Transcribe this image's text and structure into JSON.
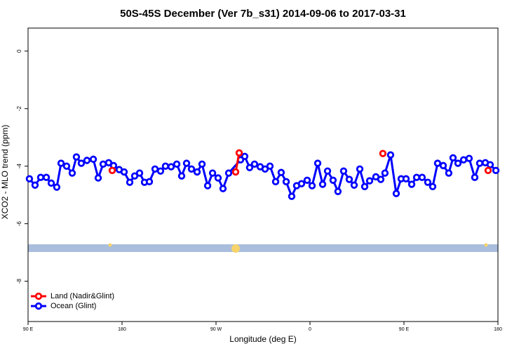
{
  "chart_data": {
    "type": "line",
    "title": "50S-45S December (Ver 7b_s31)   2014-09-06 to 2017-03-31",
    "xlabel": "Longitude (deg E)",
    "ylabel": "XCO2 - MLO trend (ppm)",
    "xlim": [
      90,
      540
    ],
    "ylim": [
      -9.4,
      0.8
    ],
    "xticks": [
      {
        "value": 90,
        "label": "90 E"
      },
      {
        "value": 180,
        "label": "180"
      },
      {
        "value": 270,
        "label": "90 W"
      },
      {
        "value": 360,
        "label": "0"
      },
      {
        "value": 450,
        "label": "90 E"
      },
      {
        "value": 540,
        "label": "180"
      }
    ],
    "yticks": [
      0,
      -2,
      -4,
      -6,
      -8
    ],
    "legend": "bottom-left",
    "series": [
      {
        "name": "Land (Nadir&Glint)",
        "color": "#ff0000",
        "x": [
          170.6,
          288.8,
          292.2,
          429.8,
          530.6
        ],
        "values": [
          -4.15,
          -4.2,
          -3.54,
          -3.56,
          -4.15
        ]
      },
      {
        "name": "Ocean (Glint)",
        "color": "#0000ff",
        "x": [
          91.3,
          96.7,
          102.1,
          107.5,
          112.2,
          117.5,
          121.6,
          126.9,
          132.3,
          136.3,
          141.0,
          146.4,
          152.5,
          157.2,
          161.9,
          167.2,
          171.9,
          177.3,
          182.0,
          187.4,
          192.1,
          196.8,
          201.5,
          206.2,
          211.6,
          216.9,
          221.6,
          227.0,
          232.4,
          237.1,
          241.8,
          246.5,
          251.9,
          256.6,
          262.0,
          266.7,
          272.0,
          276.7,
          282.1,
          293.5,
          297.5,
          302.2,
          306.9,
          312.3,
          317.0,
          321.7,
          327.1,
          332.4,
          337.2,
          342.5,
          347.2,
          351.9,
          357.3,
          362.0,
          367.4,
          372.1,
          376.8,
          382.1,
          386.8,
          392.2,
          397.6,
          402.3,
          407.7,
          412.4,
          417.1,
          423.1,
          427.8,
          431.8,
          437.2,
          442.6,
          447.3,
          452.0,
          457.4,
          462.1,
          467.4,
          472.8,
          477.5,
          482.2,
          487.6,
          492.9,
          497.0,
          501.7,
          507.1,
          512.4,
          517.8,
          522.5,
          527.9,
          532.6,
          538.0
        ],
        "values": [
          -4.44,
          -4.66,
          -4.39,
          -4.39,
          -4.59,
          -4.73,
          -3.9,
          -4.0,
          -4.24,
          -3.68,
          -3.9,
          -3.8,
          -3.76,
          -4.41,
          -3.93,
          -3.88,
          -3.98,
          -4.12,
          -4.2,
          -4.56,
          -4.34,
          -4.24,
          -4.56,
          -4.54,
          -4.1,
          -4.17,
          -4.0,
          -4.02,
          -3.93,
          -4.34,
          -3.9,
          -4.1,
          -4.2,
          -3.93,
          -4.68,
          -4.24,
          -4.41,
          -4.78,
          -4.24,
          -3.78,
          -3.66,
          -4.05,
          -3.93,
          -4.02,
          -4.1,
          -4.0,
          -4.54,
          -4.22,
          -4.54,
          -5.05,
          -4.68,
          -4.61,
          -4.49,
          -4.68,
          -3.9,
          -4.63,
          -4.17,
          -4.49,
          -4.88,
          -4.17,
          -4.46,
          -4.66,
          -4.1,
          -4.71,
          -4.51,
          -4.37,
          -4.46,
          -4.24,
          -3.61,
          -4.95,
          -4.44,
          -4.44,
          -4.63,
          -4.39,
          -4.39,
          -4.56,
          -4.71,
          -3.9,
          -3.98,
          -4.24,
          -3.71,
          -3.9,
          -3.78,
          -3.73,
          -4.39,
          -3.9,
          -3.88,
          -3.95,
          -4.15
        ]
      }
    ]
  }
}
